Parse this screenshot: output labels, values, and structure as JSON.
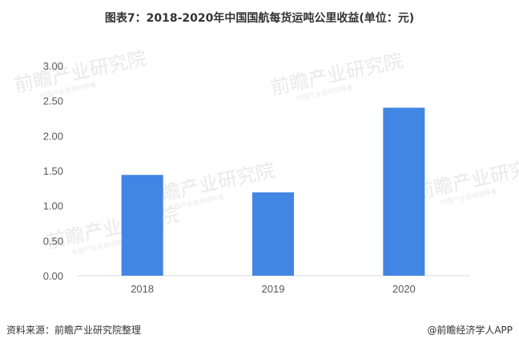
{
  "title": "图表7：2018-2020年中国国航每货运吨公里收益(单位：元)",
  "footer": {
    "source": "资料来源：前瞻产业研究院整理",
    "credit": "@前瞻经济学人APP"
  },
  "watermark": {
    "text": "前瞻产业研究院",
    "subtext": "中国产业咨询领导者"
  },
  "colors": {
    "bar": "#4286e3",
    "axis": "#d9d9d9",
    "tick": "#595959"
  },
  "chart_data": {
    "type": "bar",
    "title": "图表7：2018-2020年中国国航每货运吨公里收益(单位：元)",
    "categories": [
      "2018",
      "2019",
      "2020"
    ],
    "values": [
      1.44,
      1.19,
      2.4
    ],
    "ylim": [
      0,
      3
    ],
    "yticks": [
      "0.00",
      "0.50",
      "1.00",
      "1.50",
      "2.00",
      "2.50",
      "3.00"
    ],
    "grid": false,
    "legend": "none"
  }
}
